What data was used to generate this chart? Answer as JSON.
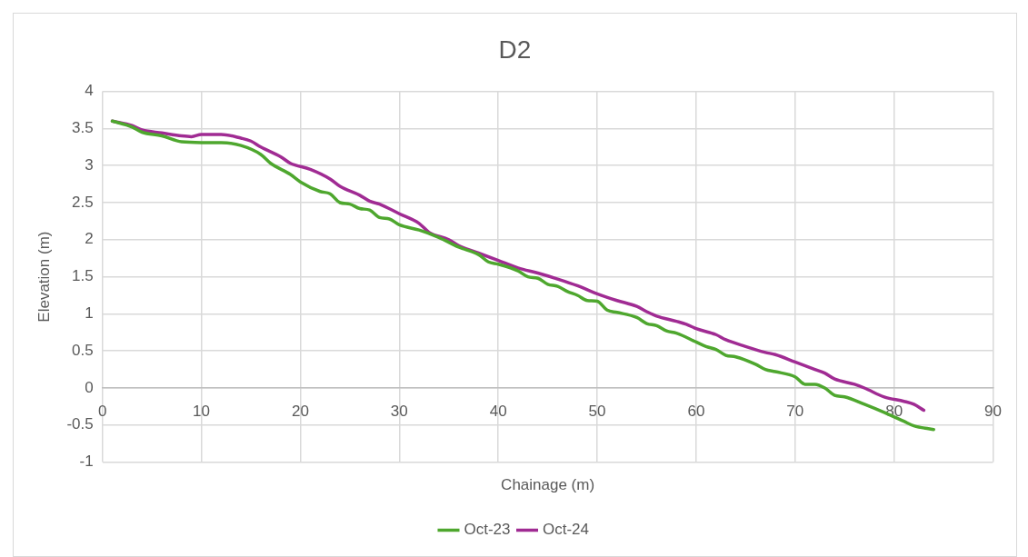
{
  "chart_data": {
    "type": "line",
    "title": "D2",
    "xlabel": "Chainage (m)",
    "ylabel": "Elevation (m)",
    "xlim": [
      0,
      90
    ],
    "xticks": [
      0,
      10,
      20,
      30,
      40,
      50,
      60,
      70,
      80,
      90
    ],
    "ylim": [
      -1,
      4
    ],
    "yticks": [
      -1,
      -0.5,
      0,
      0.5,
      1,
      1.5,
      2,
      2.5,
      3,
      3.5,
      4
    ],
    "grid": true,
    "legend": "bottom",
    "marker": "none",
    "line_style": "solid",
    "series": [
      {
        "name": "Oct-23",
        "color": "#4ea72e",
        "x": [
          1,
          3,
          4,
          6,
          8,
          10,
          12,
          14,
          16,
          17,
          19,
          20,
          22,
          23,
          24,
          25,
          26,
          27,
          28,
          29,
          30,
          32,
          34,
          36,
          38,
          39,
          40,
          42,
          43,
          44,
          45,
          46,
          47,
          48,
          49,
          50,
          51,
          52,
          54,
          55,
          56,
          57,
          58,
          60,
          61,
          62,
          63,
          64,
          66,
          67,
          68,
          70,
          71,
          72,
          73,
          74,
          75,
          77,
          79,
          81,
          82,
          84
        ],
        "values": [
          3.6,
          3.52,
          3.45,
          3.4,
          3.32,
          3.31,
          3.31,
          3.27,
          3.15,
          3.03,
          2.88,
          2.78,
          2.65,
          2.62,
          2.5,
          2.48,
          2.42,
          2.4,
          2.3,
          2.28,
          2.2,
          2.13,
          2.03,
          1.9,
          1.8,
          1.7,
          1.67,
          1.58,
          1.5,
          1.48,
          1.4,
          1.37,
          1.3,
          1.25,
          1.18,
          1.17,
          1.05,
          1.02,
          0.95,
          0.87,
          0.84,
          0.77,
          0.74,
          0.62,
          0.56,
          0.52,
          0.44,
          0.42,
          0.32,
          0.25,
          0.22,
          0.15,
          0.05,
          0.05,
          0,
          -0.1,
          -0.12,
          -0.22,
          -0.33,
          -0.45,
          -0.51,
          -0.56
        ]
      },
      {
        "name": "Oct-24",
        "color": "#a02b93",
        "x": [
          1,
          3,
          4,
          6,
          8,
          9,
          10,
          12,
          14,
          15,
          16,
          18,
          19,
          21,
          23,
          24,
          26,
          27,
          28,
          30,
          32,
          33,
          35,
          36,
          38,
          40,
          42,
          44,
          46,
          48,
          50,
          52,
          54,
          55,
          56,
          58,
          59,
          60,
          62,
          63,
          65,
          67,
          68,
          70,
          72,
          73,
          74,
          76,
          77,
          79,
          81,
          82,
          83
        ],
        "values": [
          3.6,
          3.54,
          3.48,
          3.44,
          3.4,
          3.39,
          3.42,
          3.42,
          3.37,
          3.33,
          3.25,
          3.12,
          3.03,
          2.95,
          2.82,
          2.72,
          2.6,
          2.52,
          2.48,
          2.35,
          2.22,
          2.1,
          2,
          1.92,
          1.82,
          1.72,
          1.62,
          1.55,
          1.47,
          1.38,
          1.27,
          1.18,
          1.1,
          1.03,
          0.97,
          0.9,
          0.86,
          0.8,
          0.72,
          0.65,
          0.56,
          0.48,
          0.45,
          0.35,
          0.25,
          0.2,
          0.12,
          0.05,
          0,
          -0.12,
          -0.18,
          -0.22,
          -0.3
        ]
      }
    ]
  }
}
